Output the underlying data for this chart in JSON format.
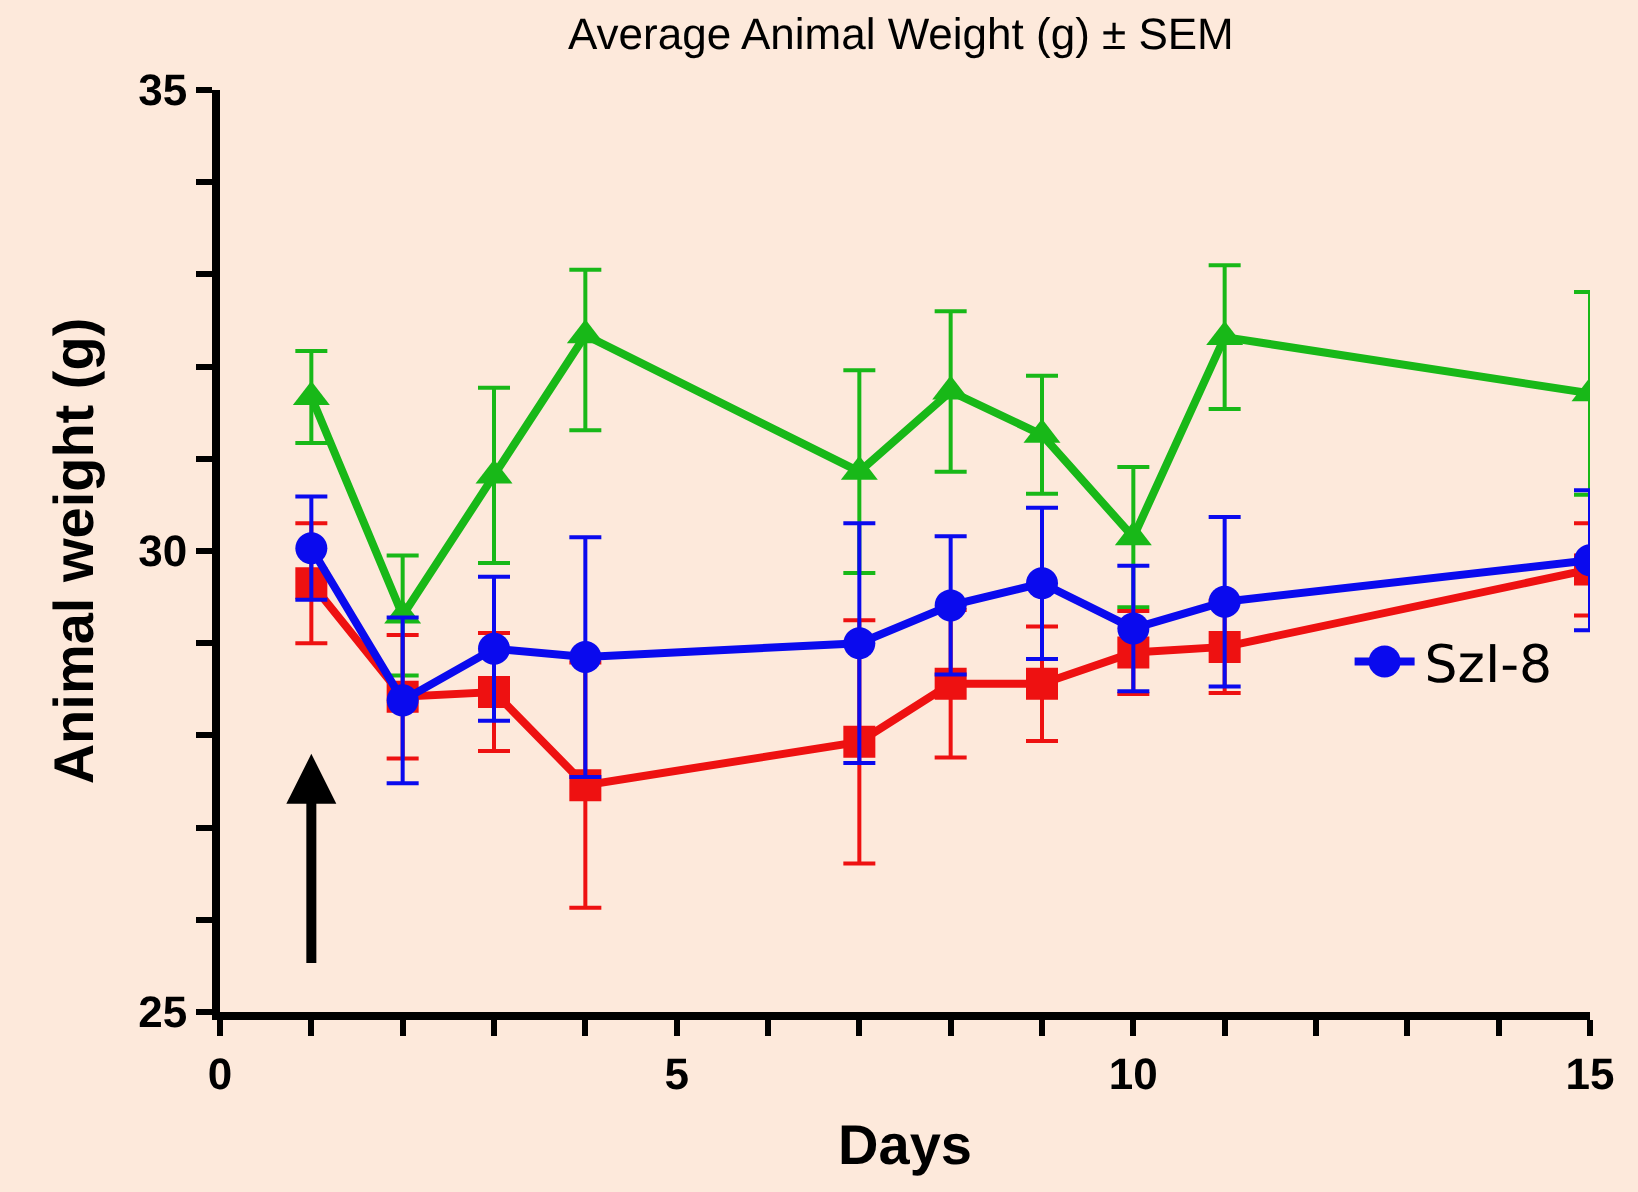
{
  "chart_data": {
    "type": "line",
    "title": "Average Animal Weight (g) ± SEM",
    "xlabel": "Days",
    "ylabel": "Animal weight (g)",
    "x": [
      1,
      2,
      3,
      4,
      7,
      8,
      9,
      10,
      11,
      15
    ],
    "series": [
      {
        "color": "#18b818",
        "marker": "triangle",
        "values": [
          31.67,
          29.3,
          30.82,
          32.34,
          30.86,
          31.73,
          31.26,
          30.15,
          32.32,
          31.71
        ],
        "errors": [
          0.5,
          0.65,
          0.95,
          [
            31.31,
            33.05
          ],
          1.1,
          0.87,
          0.64,
          0.76,
          0.78,
          1.1
        ]
      },
      {
        "color": "#ee1111",
        "marker": "square",
        "values": [
          29.65,
          28.42,
          28.47,
          27.46,
          27.93,
          28.56,
          28.56,
          28.9,
          28.96,
          29.8
        ],
        "errors": [
          0.65,
          0.67,
          0.64,
          1.33,
          1.32,
          0.8,
          0.62,
          0.45,
          0.5,
          0.5
        ]
      },
      {
        "name": "SzI-8",
        "color": "#0a0aee",
        "marker": "circle",
        "values": [
          30.03,
          28.38,
          28.94,
          28.85,
          29.0,
          29.41,
          29.65,
          29.16,
          29.45,
          29.9
        ],
        "errors": [
          0.56,
          0.9,
          0.78,
          1.3,
          1.3,
          0.75,
          0.82,
          0.68,
          0.92,
          0.76
        ]
      }
    ],
    "xlim": [
      0,
      15
    ],
    "xticks": [
      0,
      {
        "value": 1,
        "label": null
      },
      {
        "value": 2,
        "label": null
      },
      {
        "value": 3,
        "label": null
      },
      {
        "value": 4,
        "label": null
      },
      5,
      {
        "value": 6,
        "label": null
      },
      {
        "value": 7,
        "label": null
      },
      {
        "value": 8,
        "label": null
      },
      {
        "value": 9,
        "label": null
      },
      10,
      {
        "value": 11,
        "label": null
      },
      {
        "value": 12,
        "label": null
      },
      {
        "value": 13,
        "label": null
      },
      {
        "value": 14,
        "label": null
      },
      15
    ],
    "ylim": [
      25,
      35
    ],
    "yticks": [
      25,
      {
        "value": 26,
        "label": null
      },
      {
        "value": 27,
        "label": null
      },
      {
        "value": 28,
        "label": null
      },
      {
        "value": 29,
        "label": null
      },
      30,
      {
        "value": 31,
        "label": null
      },
      {
        "value": 32,
        "label": null
      },
      {
        "value": 33,
        "label": null
      },
      {
        "value": 34,
        "label": null
      },
      35
    ],
    "grid": false,
    "legend": "right",
    "line_style": "solid"
  }
}
